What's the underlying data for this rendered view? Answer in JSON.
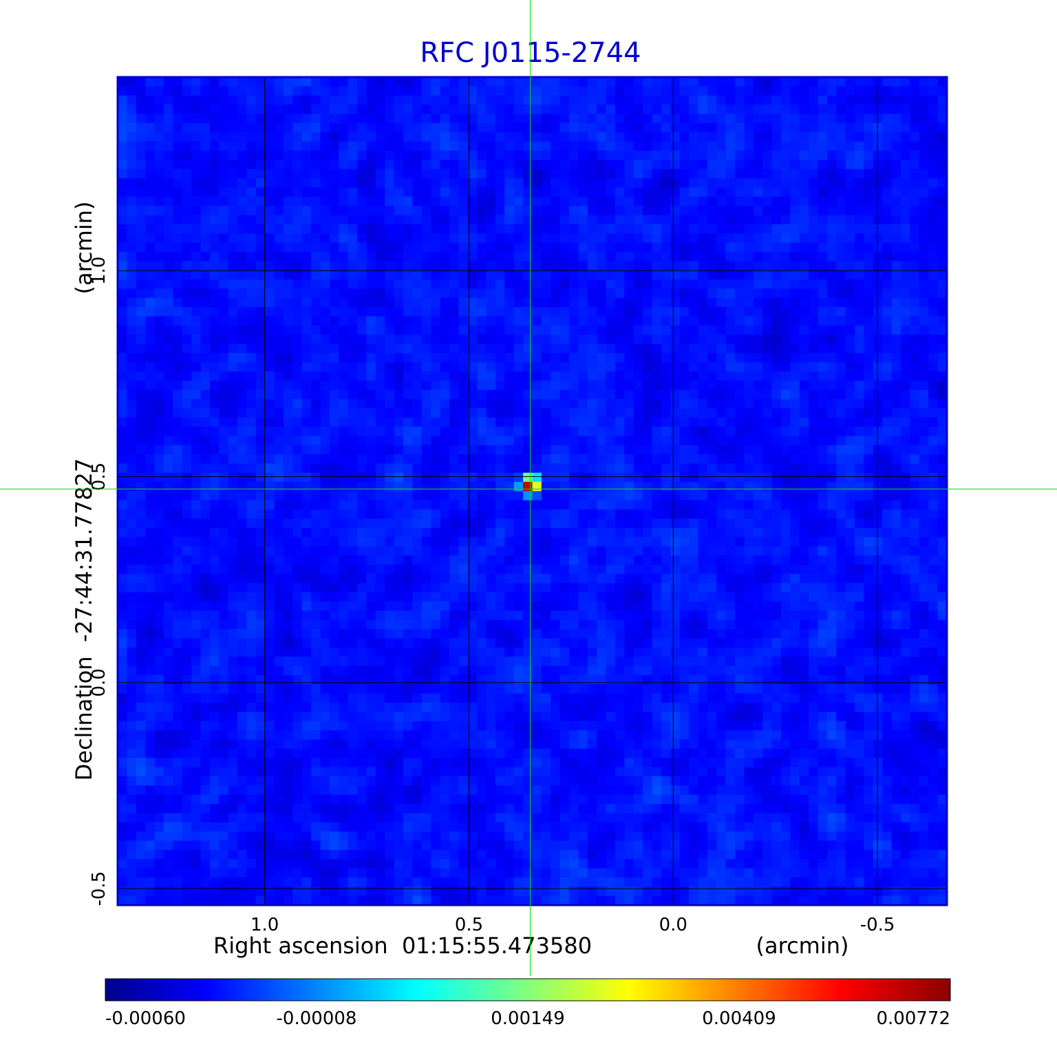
{
  "chart_data": {
    "type": "heatmap",
    "title": "RFC J0115-2744",
    "xlabel": "Right ascension  01:15:55.473580",
    "xunit": "(arcmin)",
    "ylabel": "Declination  -27:44:31.77827",
    "yunit": "(arcmin)",
    "xlim": [
      1.36,
      -0.67
    ],
    "ylim": [
      -0.54,
      1.47
    ],
    "x_ticks": [
      {
        "value": 1.0,
        "label": "1.0"
      },
      {
        "value": 0.5,
        "label": "0.5"
      },
      {
        "value": 0.0,
        "label": "0.0"
      },
      {
        "value": -0.5,
        "label": "-0.5"
      }
    ],
    "y_ticks": [
      {
        "value": 1.0,
        "label": "1.0"
      },
      {
        "value": 0.5,
        "label": "0.5"
      },
      {
        "value": 0.0,
        "label": "0.0"
      },
      {
        "value": -0.5,
        "label": "-0.5"
      }
    ],
    "grid": true,
    "colormap": "jet",
    "colorbar": {
      "min": -0.0006,
      "max": 0.00772,
      "tick_labels": [
        "-0.00060",
        "-0.00008",
        "0.00149",
        "0.00409",
        "0.00772"
      ],
      "colors": [
        "#00008b",
        "#0000ff",
        "#00ffff",
        "#ffff00",
        "#ff0000",
        "#8b0000"
      ]
    },
    "source": {
      "x": 0.35,
      "y": 0.48,
      "peak": 0.00772
    },
    "crosshair": {
      "x": 0.35,
      "y": 0.47,
      "color": "#00e000"
    },
    "background_mean": 0.0005,
    "title_color": "#0000cc",
    "frame_color": "#0000cc"
  }
}
